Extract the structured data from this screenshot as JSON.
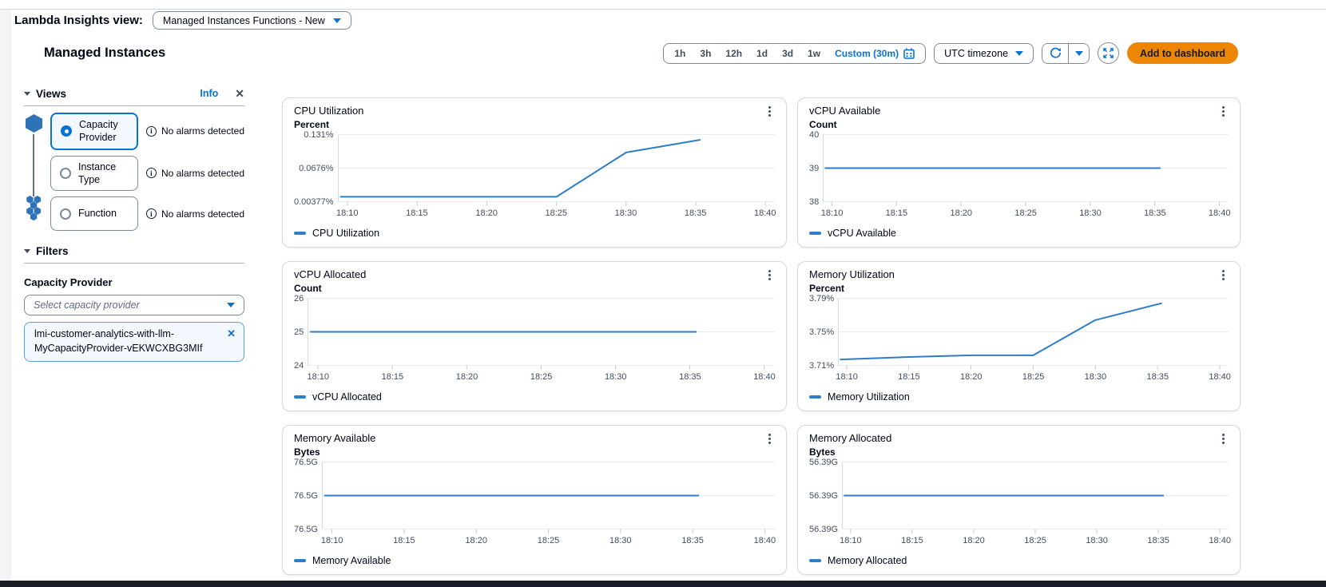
{
  "header": {
    "label": "Lambda Insights view:",
    "selector": "Managed Instances Functions - New"
  },
  "page": {
    "heading": "Managed Instances"
  },
  "toolbar": {
    "ranges": [
      "1h",
      "3h",
      "12h",
      "1d",
      "3d",
      "1w"
    ],
    "custom_label": "Custom (30m)",
    "timezone": "UTC timezone",
    "add_to_dashboard": "Add to dashboard"
  },
  "sidebar": {
    "views_label": "Views",
    "info_link": "Info",
    "options": [
      {
        "label": "Capacity Provider",
        "alarm": "No alarms detected",
        "selected": true
      },
      {
        "label": "Instance Type",
        "alarm": "No alarms detected",
        "selected": false
      },
      {
        "label": "Function",
        "alarm": "No alarms detected",
        "selected": false
      }
    ],
    "filters_label": "Filters",
    "field_label": "Capacity Provider",
    "placeholder": "Select capacity provider",
    "token": "lmi-customer-analytics-with-llm-MyCapacityProvider-vEKWCXBG3MIf"
  },
  "colors": {
    "accent": "#0972d3",
    "line": "#2e7dc8",
    "orange": "#ec8604"
  },
  "chart_data": [
    {
      "type": "line",
      "title": "CPU Utilization",
      "unit": "Percent",
      "legend": "CPU Utilization",
      "color": "#2e7dc8",
      "yticks": [
        "0.131%",
        "0.0676%",
        "0.00377%"
      ],
      "ylim": [
        0.00377,
        0.131
      ],
      "xticks": [
        "18:10",
        "18:15",
        "18:20",
        "18:25",
        "18:30",
        "18:35",
        "18:40"
      ],
      "xtick_minutes": [
        10,
        15,
        20,
        25,
        30,
        35,
        40
      ],
      "xlim": [
        9.3,
        40.7
      ],
      "x_minutes": [
        9.5,
        15,
        20,
        25,
        30,
        35.3
      ],
      "values": [
        0.013,
        0.013,
        0.013,
        0.013,
        0.097,
        0.121
      ],
      "grid": true,
      "legend_position": "bottom"
    },
    {
      "type": "line",
      "title": "vCPU Available",
      "unit": "Count",
      "legend": "vCPU Available",
      "color": "#2e7dc8",
      "yticks": [
        "40",
        "39",
        "38"
      ],
      "ylim": [
        38,
        40
      ],
      "xticks": [
        "18:10",
        "18:15",
        "18:20",
        "18:25",
        "18:30",
        "18:35",
        "18:40"
      ],
      "xtick_minutes": [
        10,
        15,
        20,
        25,
        30,
        35,
        40
      ],
      "xlim": [
        9.3,
        40.7
      ],
      "x_minutes": [
        9.5,
        35.4
      ],
      "values": [
        39,
        39
      ],
      "grid": true,
      "legend_position": "bottom"
    },
    {
      "type": "line",
      "title": "vCPU Allocated",
      "unit": "Count",
      "legend": "vCPU Allocated",
      "color": "#2e7dc8",
      "yticks": [
        "26",
        "25",
        "24"
      ],
      "ylim": [
        24,
        26
      ],
      "xticks": [
        "18:10",
        "18:15",
        "18:20",
        "18:25",
        "18:30",
        "18:35",
        "18:40"
      ],
      "xtick_minutes": [
        10,
        15,
        20,
        25,
        30,
        35,
        40
      ],
      "xlim": [
        9.3,
        40.7
      ],
      "x_minutes": [
        9.5,
        35.4
      ],
      "values": [
        25,
        25
      ],
      "grid": true,
      "legend_position": "bottom"
    },
    {
      "type": "line",
      "title": "Memory Utilization",
      "unit": "Percent",
      "legend": "Memory Utilization",
      "color": "#2e7dc8",
      "yticks": [
        "3.79%",
        "3.75%",
        "3.71%"
      ],
      "ylim": [
        3.71,
        3.79
      ],
      "xticks": [
        "18:10",
        "18:15",
        "18:20",
        "18:25",
        "18:30",
        "18:35",
        "18:40"
      ],
      "xtick_minutes": [
        10,
        15,
        20,
        25,
        30,
        35,
        40
      ],
      "xlim": [
        9.3,
        40.7
      ],
      "x_minutes": [
        9.5,
        15,
        20,
        25,
        30,
        35.3
      ],
      "values": [
        3.717,
        3.72,
        3.722,
        3.722,
        3.764,
        3.784
      ],
      "grid": true,
      "legend_position": "bottom"
    },
    {
      "type": "line",
      "title": "Memory Available",
      "unit": "Bytes",
      "legend": "Memory Available",
      "color": "#2e7dc8",
      "yticks": [
        "76.5G",
        "76.5G",
        "76.5G"
      ],
      "ylim": [
        76.4,
        76.6
      ],
      "xticks": [
        "18:10",
        "18:15",
        "18:20",
        "18:25",
        "18:30",
        "18:35",
        "18:40"
      ],
      "xtick_minutes": [
        10,
        15,
        20,
        25,
        30,
        35,
        40
      ],
      "xlim": [
        9.3,
        40.7
      ],
      "x_minutes": [
        9.5,
        35.4
      ],
      "values": [
        76.5,
        76.5
      ],
      "grid": true,
      "legend_position": "bottom"
    },
    {
      "type": "line",
      "title": "Memory Allocated",
      "unit": "Bytes",
      "legend": "Memory Allocated",
      "color": "#2e7dc8",
      "yticks": [
        "56.39G",
        "56.39G",
        "56.39G"
      ],
      "ylim": [
        56.29,
        56.49
      ],
      "xticks": [
        "18:10",
        "18:15",
        "18:20",
        "18:25",
        "18:30",
        "18:35",
        "18:40"
      ],
      "xtick_minutes": [
        10,
        15,
        20,
        25,
        30,
        35,
        40
      ],
      "xlim": [
        9.3,
        40.7
      ],
      "x_minutes": [
        9.5,
        35.4
      ],
      "values": [
        56.39,
        56.39
      ],
      "grid": true,
      "legend_position": "bottom"
    }
  ]
}
